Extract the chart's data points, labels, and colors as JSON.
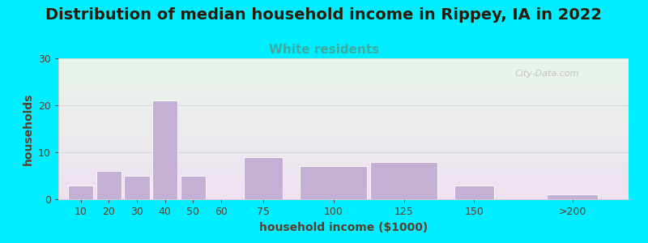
{
  "title": "Distribution of median household income in Rippey, IA in 2022",
  "subtitle": "White residents",
  "xlabel": "household income ($1000)",
  "ylabel": "households",
  "bar_labels": [
    "10",
    "20",
    "30",
    "40",
    "50",
    "60",
    "75",
    "100",
    "125",
    "150",
    ">200"
  ],
  "bar_values": [
    3,
    6,
    5,
    21,
    5,
    0,
    9,
    7,
    8,
    3,
    1
  ],
  "bar_color": "#c5b0d5",
  "bar_edge_color": "#ffffff",
  "background_outer": "#00eeff",
  "background_plot_top": "#e8f5e9",
  "background_plot_bottom": "#ede0f0",
  "ylim": [
    0,
    30
  ],
  "yticks": [
    0,
    10,
    20,
    30
  ],
  "title_fontsize": 14,
  "subtitle_fontsize": 11,
  "subtitle_color": "#3aada0",
  "axis_label_fontsize": 10,
  "tick_fontsize": 9,
  "tick_color": "#5a3e2b",
  "title_color": "#2a1a0a",
  "watermark_text": "City-Data.com",
  "watermark_color": "#aaaaaa",
  "bar_positions": [
    10,
    20,
    30,
    40,
    50,
    60,
    75,
    100,
    125,
    150,
    185
  ],
  "bar_widths": [
    9,
    9,
    9,
    9,
    9,
    0,
    14,
    24,
    24,
    14,
    18
  ],
  "tick_positions": [
    10,
    20,
    30,
    40,
    50,
    60,
    75,
    100,
    125,
    150,
    185
  ],
  "xlim": [
    2,
    205
  ],
  "grid_color": "#cccccc",
  "grid_alpha": 0.7
}
